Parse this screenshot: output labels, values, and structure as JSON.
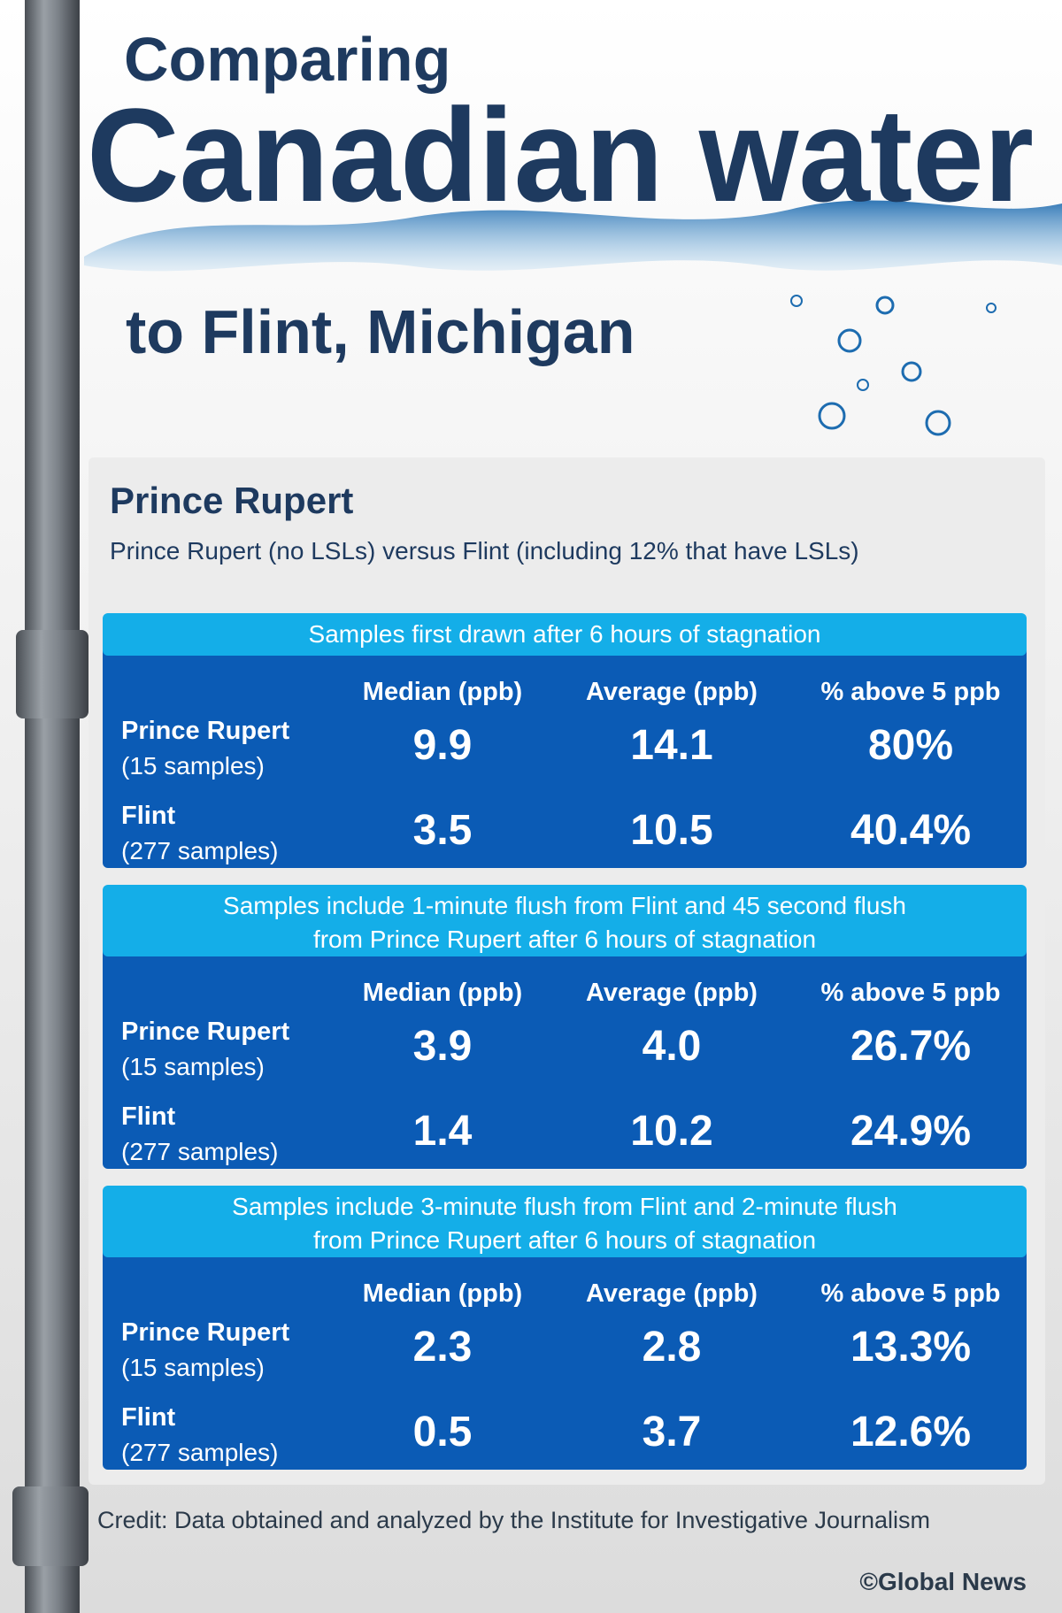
{
  "header": {
    "line1": "Comparing",
    "line2": "Canadian water",
    "line3": "to Flint, Michigan"
  },
  "panel": {
    "title": "Prince Rupert",
    "subtitle": "Prince Rupert (no LSLs) versus Flint (including 12% that have LSLs)",
    "tables": [
      {
        "caption": [
          "Samples first drawn after 6 hours of stagnation"
        ],
        "columns": [
          "Median (ppb)",
          "Average (ppb)",
          "% above 5 ppb"
        ],
        "rows": [
          {
            "name": "Prince Rupert",
            "samples": "(15 samples)",
            "cells": [
              "9.9",
              "14.1",
              "80%"
            ]
          },
          {
            "name": "Flint",
            "samples": "(277 samples)",
            "cells": [
              "3.5",
              "10.5",
              "40.4%"
            ]
          }
        ]
      },
      {
        "caption": [
          "Samples include 1-minute flush from Flint and 45 second flush",
          "from Prince Rupert after 6 hours of stagnation"
        ],
        "columns": [
          "Median (ppb)",
          "Average (ppb)",
          "% above 5 ppb"
        ],
        "rows": [
          {
            "name": "Prince Rupert",
            "samples": "(15 samples)",
            "cells": [
              "3.9",
              "4.0",
              "26.7%"
            ]
          },
          {
            "name": "Flint",
            "samples": "(277 samples)",
            "cells": [
              "1.4",
              "10.2",
              "24.9%"
            ]
          }
        ]
      },
      {
        "caption": [
          "Samples include 3-minute flush from Flint and 2-minute flush",
          "from Prince Rupert after 6 hours of stagnation"
        ],
        "columns": [
          "Median (ppb)",
          "Average (ppb)",
          "% above 5 ppb"
        ],
        "rows": [
          {
            "name": "Prince Rupert",
            "samples": "(15 samples)",
            "cells": [
              "2.3",
              "2.8",
              "13.3%"
            ]
          },
          {
            "name": "Flint",
            "samples": "(277 samples)",
            "cells": [
              "0.5",
              "3.7",
              "12.6%"
            ]
          }
        ]
      }
    ]
  },
  "footer": {
    "credit": "Credit: Data obtained and analyzed by the Institute for Investigative Journalism",
    "source": "©Global News"
  }
}
